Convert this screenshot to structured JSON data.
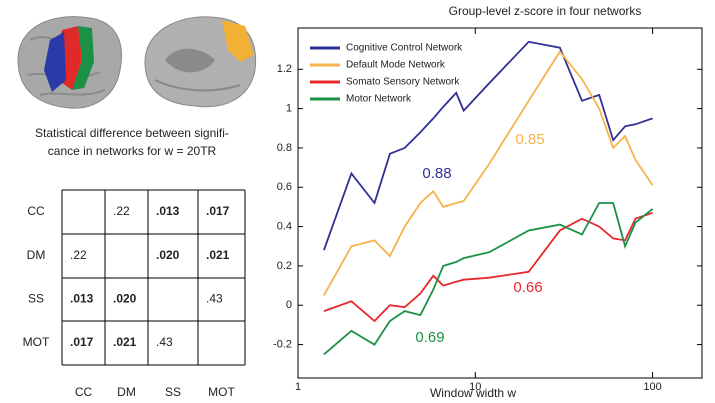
{
  "caption": [
    "Statistical difference between signifi-",
    "cance in networks for w = 20TR"
  ],
  "table": {
    "columns": [
      "CC",
      "DM",
      "SS",
      "MOT"
    ],
    "rows": [
      {
        "label": "CC",
        "cells": [
          null,
          {
            "text": ".22",
            "bold": false
          },
          {
            "text": ".013",
            "bold": true
          },
          {
            "text": ".017",
            "bold": true
          }
        ]
      },
      {
        "label": "DM",
        "cells": [
          {
            "text": ".22",
            "bold": false
          },
          null,
          {
            "text": ".020",
            "bold": true
          },
          {
            "text": ".021",
            "bold": true
          }
        ]
      },
      {
        "label": "SS",
        "cells": [
          {
            "text": ".013",
            "bold": true
          },
          {
            "text": ".020",
            "bold": true
          },
          null,
          {
            "text": ".43",
            "bold": false
          }
        ]
      },
      {
        "label": "MOT",
        "cells": [
          {
            "text": ".017",
            "bold": true
          },
          {
            "text": ".021",
            "bold": true
          },
          {
            "text": ".43",
            "bold": false
          },
          null
        ]
      }
    ]
  },
  "chart_data": {
    "type": "line",
    "title": "Group-level z-score in four networks",
    "xlabel": "Window width w",
    "xscale": "log",
    "xlim": [
      1,
      190
    ],
    "xticks": [
      1,
      10,
      100
    ],
    "ylim": [
      -0.37,
      1.41
    ],
    "yticks": [
      -0.2,
      0,
      0.2,
      0.4,
      0.6,
      0.8,
      1,
      1.2
    ],
    "legend": "upper left",
    "x": [
      1.4,
      2,
      2.7,
      3.3,
      4,
      4.9,
      5.8,
      6.6,
      7.8,
      8.6,
      12,
      20,
      30,
      40,
      50,
      60,
      70,
      80,
      100
    ],
    "series": [
      {
        "name": "Cognitive Control Network",
        "color": "#2e3192",
        "values": [
          0.28,
          0.67,
          0.52,
          0.77,
          0.8,
          0.88,
          0.95,
          1.01,
          1.08,
          0.99,
          1.13,
          1.34,
          1.31,
          1.04,
          1.07,
          0.84,
          0.91,
          0.92,
          0.95
        ]
      },
      {
        "name": "Default Mode Network",
        "color": "#f7b24a",
        "values": [
          0.05,
          0.3,
          0.33,
          0.25,
          0.4,
          0.52,
          0.58,
          0.5,
          0.52,
          0.53,
          0.72,
          1.04,
          1.29,
          1.15,
          1.0,
          0.8,
          0.86,
          0.74,
          0.61
        ]
      },
      {
        "name": "Somato Sensory Network",
        "color": "#e8282b",
        "values": [
          -0.03,
          0.02,
          -0.08,
          0.0,
          -0.01,
          0.06,
          0.15,
          0.1,
          0.12,
          0.13,
          0.14,
          0.17,
          0.38,
          0.44,
          0.4,
          0.34,
          0.33,
          0.44,
          0.47
        ]
      },
      {
        "name": "Motor Network",
        "color": "#1a9146",
        "values": [
          -0.25,
          -0.13,
          -0.2,
          -0.08,
          -0.03,
          -0.05,
          0.08,
          0.2,
          0.22,
          0.24,
          0.27,
          0.38,
          0.41,
          0.36,
          0.52,
          0.52,
          0.3,
          0.42,
          0.49
        ]
      }
    ],
    "annotations": [
      {
        "text": "0.88",
        "color": "#2e3192"
      },
      {
        "text": "0.85",
        "color": "#f7b24a"
      },
      {
        "text": "0.66",
        "color": "#e8282b"
      },
      {
        "text": "0.69",
        "color": "#1a9146"
      }
    ]
  }
}
